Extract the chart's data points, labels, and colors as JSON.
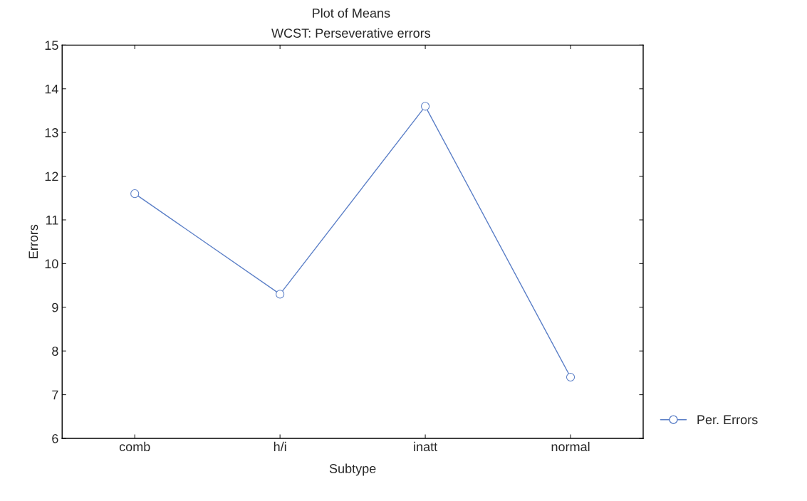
{
  "chart_data": {
    "type": "line",
    "title": "Plot of Means",
    "subtitle": "WCST: Perseverative errors",
    "xlabel": "Subtype",
    "ylabel": "Errors",
    "categories": [
      "comb",
      "h/i",
      "inatt",
      "normal"
    ],
    "series": [
      {
        "name": "Per. Errors",
        "color": "#5b7fc7",
        "values": [
          11.6,
          9.3,
          13.6,
          7.4
        ]
      }
    ],
    "ylim": [
      6,
      15
    ],
    "yticks": [
      6,
      7,
      8,
      9,
      10,
      11,
      12,
      13,
      14,
      15
    ],
    "marker": "circle",
    "line_style": "solid",
    "grid": false,
    "legend": "bottom right"
  }
}
